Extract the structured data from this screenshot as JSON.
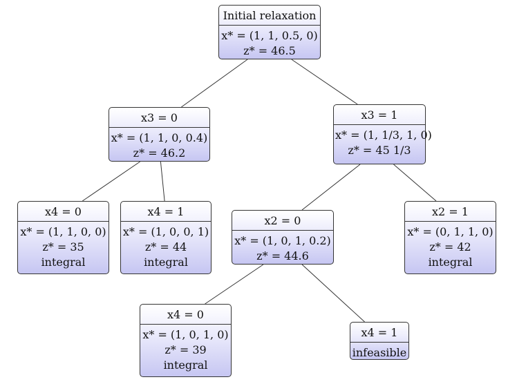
{
  "nodes": [
    {
      "id": "root",
      "title": "Initial relaxation",
      "lines": [
        "x* = (1, 1, 0.5, 0)",
        "z* = 46.5"
      ]
    },
    {
      "id": "n_x3_0",
      "title": "x3 = 0",
      "lines": [
        "x* = (1, 1, 0, 0.4)",
        "z* = 46.2"
      ]
    },
    {
      "id": "n_x3_1",
      "title": "x3 = 1",
      "lines": [
        "x* = (1, 1/3, 1, 0)",
        "z* = 45 1/3"
      ]
    },
    {
      "id": "n_a_x4_0",
      "title": "x4 = 0",
      "lines": [
        "x* = (1, 1, 0, 0)",
        "z* = 35",
        "integral"
      ]
    },
    {
      "id": "n_a_x4_1",
      "title": "x4 = 1",
      "lines": [
        "x* = (1, 0, 0, 1)",
        "z* = 44",
        "integral"
      ]
    },
    {
      "id": "n_x2_0",
      "title": "x2 = 0",
      "lines": [
        "x* = (1, 0, 1, 0.2)",
        "z* = 44.6"
      ]
    },
    {
      "id": "n_x2_1",
      "title": "x2 = 1",
      "lines": [
        "x* = (0, 1, 1, 0)",
        "z* = 42",
        "integral"
      ]
    },
    {
      "id": "n_b_x4_0",
      "title": "x4 = 0",
      "lines": [
        "x* = (1, 0, 1, 0)",
        "z* = 39",
        "integral"
      ]
    },
    {
      "id": "n_b_x4_1",
      "title": "x4 = 1",
      "lines": [
        "infeasible"
      ]
    }
  ],
  "edges": [
    [
      "root",
      "n_x3_0"
    ],
    [
      "root",
      "n_x3_1"
    ],
    [
      "n_x3_0",
      "n_a_x4_0"
    ],
    [
      "n_x3_0",
      "n_a_x4_1"
    ],
    [
      "n_x3_1",
      "n_x2_0"
    ],
    [
      "n_x3_1",
      "n_x2_1"
    ],
    [
      "n_x2_0",
      "n_b_x4_0"
    ],
    [
      "n_x2_0",
      "n_b_x4_1"
    ]
  ]
}
